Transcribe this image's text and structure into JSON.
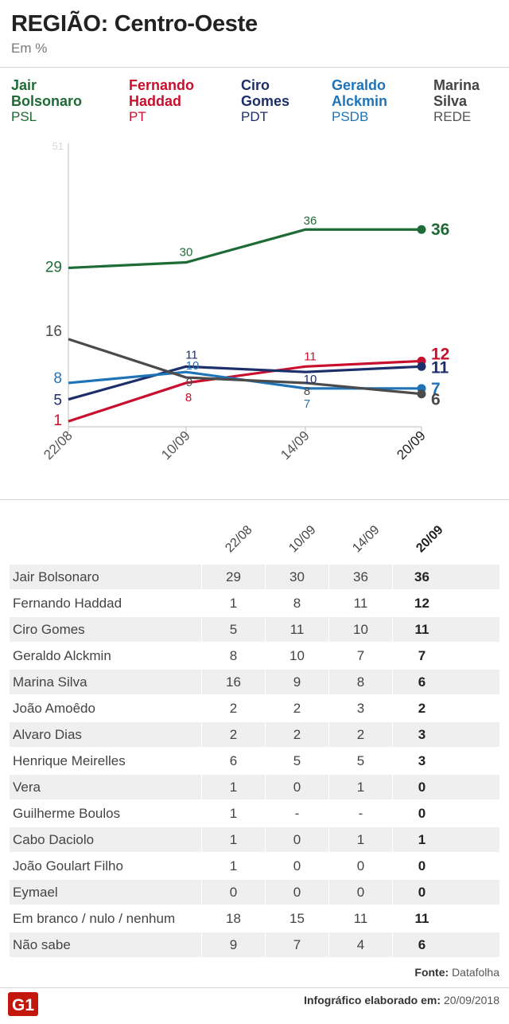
{
  "title": "REGIÃO: Centro-Oeste",
  "subtitle": "Em %",
  "legend": [
    {
      "name": "Jair Bolsonaro",
      "party": "PSL",
      "color": "#1e6b35"
    },
    {
      "name": "Fernando Haddad",
      "party": "PT",
      "color": "#c8102e"
    },
    {
      "name": "Ciro Gomes",
      "party": "PDT",
      "color": "#1d2f6b"
    },
    {
      "name": "Geraldo Alckmin",
      "party": "PSDB",
      "color": "#1f74b8"
    },
    {
      "name": "Marina Silva",
      "party": "REDE",
      "color": "#4b4b4b"
    }
  ],
  "chart_data": {
    "type": "line",
    "x": [
      "22/08",
      "10/09",
      "14/09",
      "20/09"
    ],
    "ylim": [
      0,
      51
    ],
    "y_tick_label": "51",
    "series": [
      {
        "name": "Jair Bolsonaro",
        "color": "#1e6b35",
        "values": [
          29,
          30,
          36,
          36
        ]
      },
      {
        "name": "Fernando Haddad",
        "color": "#c8102e",
        "values": [
          1,
          8,
          11,
          12
        ]
      },
      {
        "name": "Ciro Gomes",
        "color": "#1d2f6b",
        "values": [
          5,
          11,
          10,
          11
        ]
      },
      {
        "name": "Geraldo Alckmin",
        "color": "#1f74b8",
        "values": [
          8,
          10,
          7,
          7
        ]
      },
      {
        "name": "Marina Silva",
        "color": "#4b4b4b",
        "values": [
          16,
          9,
          8,
          6
        ]
      }
    ]
  },
  "table": {
    "dates": [
      "22/08",
      "10/09",
      "14/09",
      "20/09"
    ],
    "rows": [
      {
        "name": "Jair Bolsonaro",
        "values": [
          "29",
          "30",
          "36",
          "36"
        ]
      },
      {
        "name": "Fernando Haddad",
        "values": [
          "1",
          "8",
          "11",
          "12"
        ]
      },
      {
        "name": "Ciro Gomes",
        "values": [
          "5",
          "11",
          "10",
          "11"
        ]
      },
      {
        "name": "Geraldo Alckmin",
        "values": [
          "8",
          "10",
          "7",
          "7"
        ]
      },
      {
        "name": "Marina Silva",
        "values": [
          "16",
          "9",
          "8",
          "6"
        ]
      },
      {
        "name": "João Amoêdo",
        "values": [
          "2",
          "2",
          "3",
          "2"
        ]
      },
      {
        "name": "Alvaro Dias",
        "values": [
          "2",
          "2",
          "2",
          "3"
        ]
      },
      {
        "name": "Henrique Meirelles",
        "values": [
          "6",
          "5",
          "5",
          "3"
        ]
      },
      {
        "name": "Vera",
        "values": [
          "1",
          "0",
          "1",
          "0"
        ]
      },
      {
        "name": "Guilherme Boulos",
        "values": [
          "1",
          "-",
          "-",
          "0"
        ]
      },
      {
        "name": "Cabo Daciolo",
        "values": [
          "1",
          "0",
          "1",
          "1"
        ]
      },
      {
        "name": "João Goulart Filho",
        "values": [
          "1",
          "0",
          "0",
          "0"
        ]
      },
      {
        "name": "Eymael",
        "values": [
          "0",
          "0",
          "0",
          "0"
        ]
      },
      {
        "name": "Em branco / nulo / nenhum",
        "values": [
          "18",
          "15",
          "11",
          "11"
        ]
      },
      {
        "name": "Não sabe",
        "values": [
          "9",
          "7",
          "4",
          "6"
        ]
      }
    ]
  },
  "source_label": "Fonte:",
  "source_value": "Datafolha",
  "footer_label": "Infográfico elaborado em:",
  "footer_value": "20/09/2018",
  "logo_text": "G1",
  "logo_color": "#c4170c"
}
